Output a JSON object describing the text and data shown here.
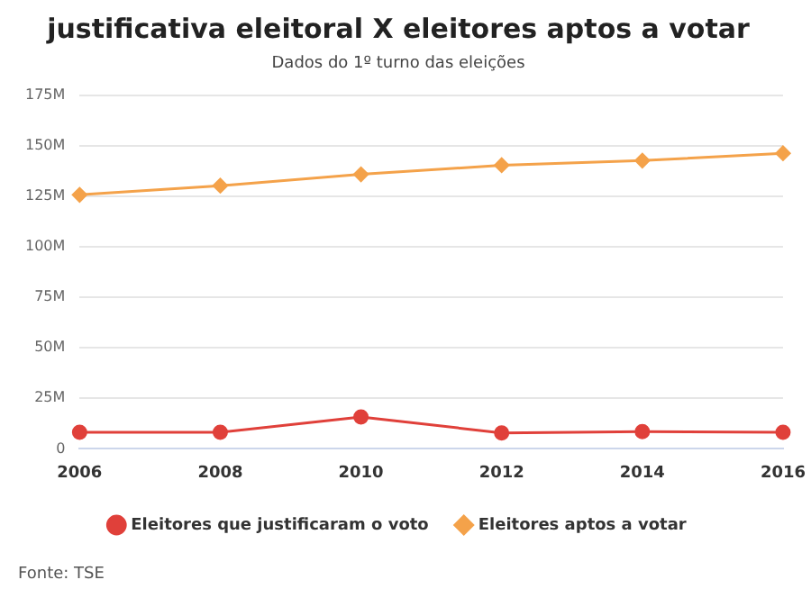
{
  "chart_data": {
    "type": "line",
    "title": "justificativa eleitoral X eleitores aptos a votar",
    "subtitle": "Dados do 1º turno das eleições",
    "categories": [
      "2006",
      "2008",
      "2010",
      "2012",
      "2014",
      "2016"
    ],
    "series": [
      {
        "name": "Eleitores que justificaram o voto",
        "color": "#e0403a",
        "marker": "circle",
        "values": [
          8.2,
          8.2,
          15.8,
          7.9,
          8.5,
          8.2
        ]
      },
      {
        "name": "Eleitores aptos a votar",
        "color": "#f4a24a",
        "marker": "diamond",
        "values": [
          125.7,
          130.2,
          135.8,
          140.3,
          142.6,
          146.2
        ]
      }
    ],
    "ylim": [
      0,
      175
    ],
    "yticks": [
      {
        "value": 0,
        "label": "0"
      },
      {
        "value": 25,
        "label": "25M"
      },
      {
        "value": 50,
        "label": "50M"
      },
      {
        "value": 75,
        "label": "75M"
      },
      {
        "value": 100,
        "label": "100M"
      },
      {
        "value": 125,
        "label": "125M"
      },
      {
        "value": 150,
        "label": "150M"
      },
      {
        "value": 175,
        "label": "175M"
      }
    ],
    "grid": "y",
    "legend": "bottom",
    "line_style": "solid",
    "annotations": [
      "Fonte: TSE"
    ]
  }
}
